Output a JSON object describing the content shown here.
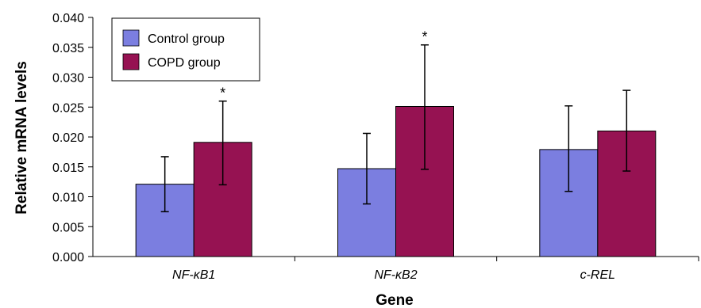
{
  "chart_data": {
    "type": "bar",
    "title": "",
    "xlabel": "Gene",
    "ylabel": "Relative mRNA levels",
    "categories": [
      "NF-κB1",
      "NF-κB2",
      "c-REL"
    ],
    "ylim": [
      0,
      0.04
    ],
    "yticks": [
      "0.000",
      "0.005",
      "0.010",
      "0.015",
      "0.020",
      "0.025",
      "0.030",
      "0.035",
      "0.040"
    ],
    "legend_position": "top-left",
    "grid": false,
    "series": [
      {
        "name": "Control group",
        "color": "#7b7ee0",
        "values": [
          0.0121,
          0.0147,
          0.0179
        ],
        "error_low": [
          0.0075,
          0.0088,
          0.0109
        ],
        "error_high": [
          0.0167,
          0.0206,
          0.0252
        ]
      },
      {
        "name": "COPD group",
        "color": "#961252",
        "values": [
          0.0191,
          0.0251,
          0.021
        ],
        "error_low": [
          0.012,
          0.0146,
          0.0143
        ],
        "error_high": [
          0.026,
          0.0354,
          0.0278
        ]
      }
    ],
    "annotations": [
      {
        "text": "*",
        "series": 1,
        "category": 0
      },
      {
        "text": "*",
        "series": 1,
        "category": 1
      }
    ]
  }
}
